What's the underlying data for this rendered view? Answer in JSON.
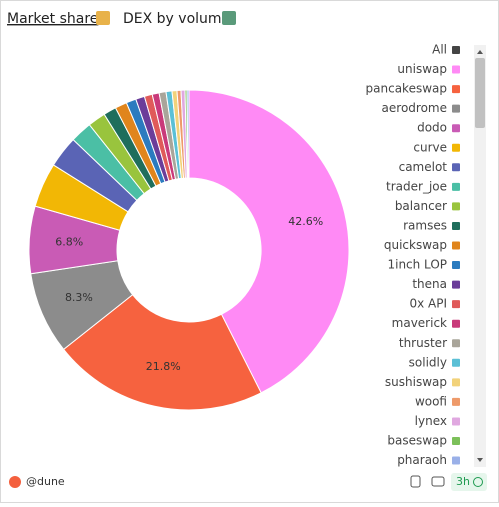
{
  "chart_data": {
    "type": "pie",
    "donut": true,
    "title": "Market share",
    "subtitle": "DEX by volume",
    "legend_all": "All",
    "legend_all_color": "#444444",
    "categories": [
      "uniswap",
      "pancakeswap",
      "aerodrome",
      "dodo",
      "curve",
      "camelot",
      "trader_joe",
      "balancer",
      "ramses",
      "quickswap",
      "1inch LOP",
      "thena",
      "0x API",
      "maverick",
      "thruster",
      "solidly",
      "sushiswap",
      "woofi",
      "lynex",
      "baseswap",
      "pharaoh"
    ],
    "values": [
      42.6,
      21.8,
      8.3,
      6.8,
      4.5,
      3.2,
      2.2,
      1.8,
      1.3,
      1.2,
      1.0,
      0.9,
      0.8,
      0.7,
      0.7,
      0.6,
      0.5,
      0.4,
      0.4,
      0.2,
      0.2
    ],
    "value_labels": [
      "42.6%",
      "21.8%",
      "8.3%",
      "6.8%",
      null,
      null,
      null,
      null,
      null,
      null,
      null,
      null,
      null,
      null,
      null,
      null,
      null,
      null,
      null,
      null,
      null
    ],
    "colors": [
      "#ff8af5",
      "#f6623f",
      "#8c8c8c",
      "#c95bb5",
      "#f2b705",
      "#5a64b5",
      "#4bbfa5",
      "#99c43d",
      "#1f6e5c",
      "#e0851c",
      "#2b7bbf",
      "#6b3d9a",
      "#e05a5a",
      "#c93a7a",
      "#a9a59a",
      "#5bc0d6",
      "#f2d27a",
      "#ee9a6a",
      "#e0a8e0",
      "#7cc05a",
      "#9ab0e8"
    ]
  },
  "footer": {
    "brand": "@dune",
    "age": "3h"
  }
}
